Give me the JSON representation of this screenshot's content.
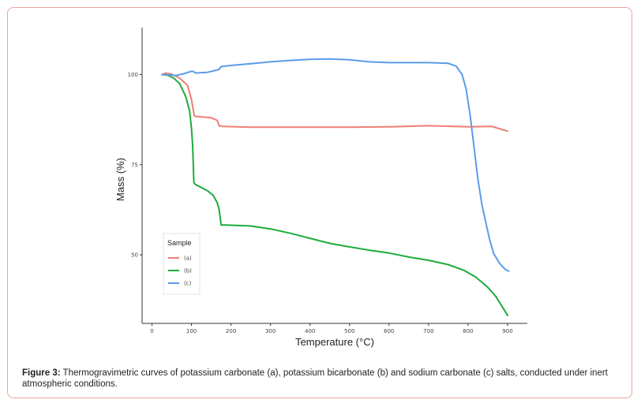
{
  "chart_data": {
    "type": "line",
    "title": "",
    "xlabel": "Temperature (°C)",
    "ylabel": "Mass (%)",
    "xlim": [
      -25,
      950
    ],
    "ylim": [
      31,
      113
    ],
    "x_ticks": [
      0,
      100,
      200,
      300,
      400,
      500,
      600,
      700,
      800,
      900
    ],
    "y_ticks": [
      50,
      75,
      100
    ],
    "grid": false,
    "legend": {
      "title": "Sample",
      "placement": "bottom-left"
    },
    "series": [
      {
        "name": "(a)",
        "color": "#f07d76",
        "points": [
          [
            25,
            100
          ],
          [
            35,
            100.4
          ],
          [
            50,
            100.1
          ],
          [
            70,
            99
          ],
          [
            90,
            97
          ],
          [
            100,
            93
          ],
          [
            107,
            88.6
          ],
          [
            110,
            88.4
          ],
          [
            150,
            88
          ],
          [
            165,
            87.3
          ],
          [
            170,
            85.8
          ],
          [
            180,
            85.6
          ],
          [
            250,
            85.4
          ],
          [
            500,
            85.4
          ],
          [
            600,
            85.5
          ],
          [
            700,
            85.8
          ],
          [
            800,
            85.5
          ],
          [
            860,
            85.6
          ],
          [
            900,
            84.3
          ]
        ]
      },
      {
        "name": "(b)",
        "color": "#1dab3b",
        "points": [
          [
            25,
            100
          ],
          [
            40,
            99.8
          ],
          [
            55,
            99
          ],
          [
            70,
            97.5
          ],
          [
            85,
            94
          ],
          [
            95,
            90
          ],
          [
            100,
            85
          ],
          [
            103,
            80
          ],
          [
            106,
            70
          ],
          [
            110,
            69.5
          ],
          [
            140,
            67.8
          ],
          [
            155,
            66.5
          ],
          [
            165,
            64.5
          ],
          [
            170,
            62.5
          ],
          [
            175,
            58.3
          ],
          [
            185,
            58.3
          ],
          [
            250,
            58
          ],
          [
            300,
            57.2
          ],
          [
            350,
            56
          ],
          [
            400,
            54.6
          ],
          [
            450,
            53.2
          ],
          [
            500,
            52.2
          ],
          [
            550,
            51.3
          ],
          [
            600,
            50.5
          ],
          [
            650,
            49.4
          ],
          [
            700,
            48.5
          ],
          [
            750,
            47.3
          ],
          [
            790,
            45.7
          ],
          [
            820,
            43.8
          ],
          [
            850,
            41
          ],
          [
            870,
            38.5
          ],
          [
            890,
            35
          ],
          [
            900,
            33.2
          ]
        ]
      },
      {
        "name": "(c)",
        "color": "#5b9bea",
        "points": [
          [
            25,
            100
          ],
          [
            45,
            99.9
          ],
          [
            60,
            99.7
          ],
          [
            80,
            100.2
          ],
          [
            100,
            100.9
          ],
          [
            105,
            100.8
          ],
          [
            110,
            100.4
          ],
          [
            140,
            100.6
          ],
          [
            160,
            101.1
          ],
          [
            170,
            101.4
          ],
          [
            175,
            102.2
          ],
          [
            200,
            102.5
          ],
          [
            250,
            103
          ],
          [
            300,
            103.5
          ],
          [
            350,
            103.9
          ],
          [
            400,
            104.2
          ],
          [
            450,
            104.3
          ],
          [
            500,
            104.1
          ],
          [
            550,
            103.5
          ],
          [
            600,
            103.3
          ],
          [
            650,
            103.3
          ],
          [
            700,
            103.3
          ],
          [
            750,
            103.1
          ],
          [
            770,
            102.3
          ],
          [
            785,
            100
          ],
          [
            795,
            96
          ],
          [
            805,
            89
          ],
          [
            815,
            80
          ],
          [
            825,
            71
          ],
          [
            835,
            64
          ],
          [
            845,
            59
          ],
          [
            855,
            54
          ],
          [
            865,
            50.3
          ],
          [
            880,
            47.6
          ],
          [
            895,
            45.9
          ],
          [
            903,
            45.5
          ]
        ]
      }
    ]
  },
  "caption": {
    "label": "Figure 3:",
    "text": " Thermogravimetric curves of potassium carbonate (a), potassium bicarbonate (b) and sodium carbonate (c) salts, conducted under inert atmospheric conditions."
  }
}
